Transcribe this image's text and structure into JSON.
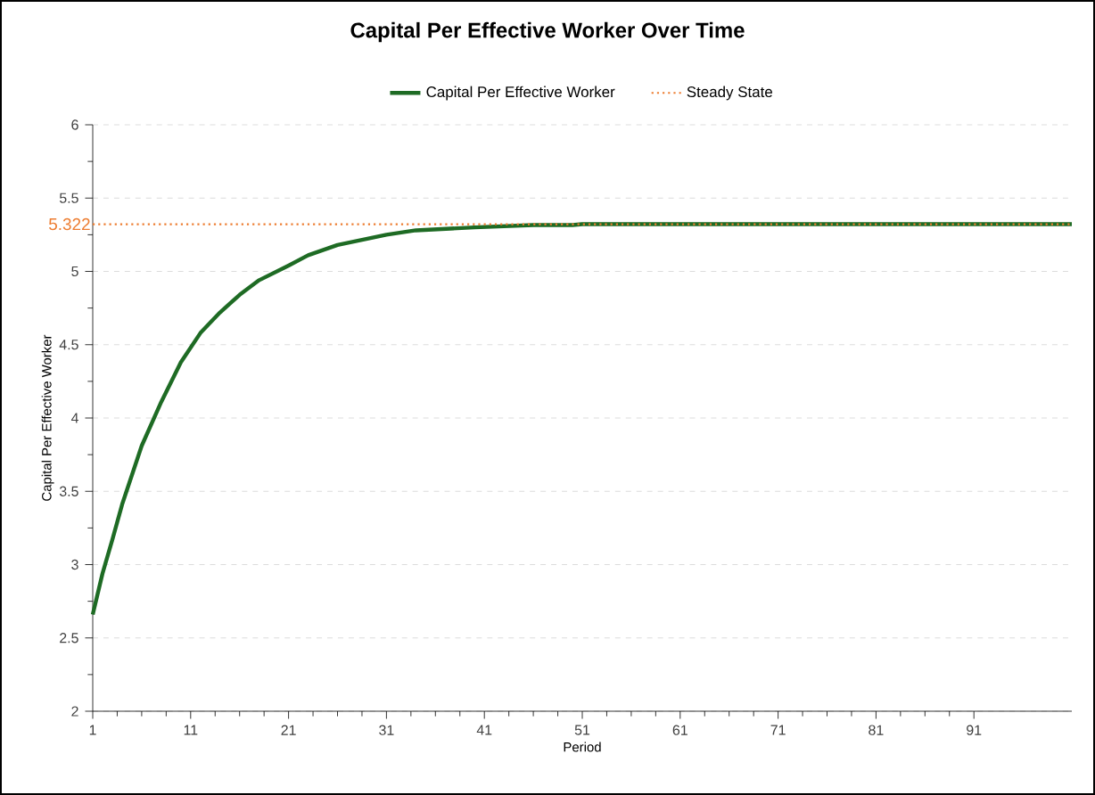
{
  "chart_data": {
    "type": "line",
    "title": "Capital Per Effective Worker Over Time",
    "xlabel": "Period",
    "ylabel": "Capital Per Effective Worker",
    "xlim": [
      1,
      101
    ],
    "xticks": [
      1,
      11,
      21,
      31,
      41,
      51,
      61,
      71,
      81,
      91
    ],
    "ylim": [
      2,
      6
    ],
    "yticks": [
      2,
      2.5,
      3,
      3.5,
      4,
      4.5,
      5,
      5.5,
      6
    ],
    "grid": "y",
    "legend": "top",
    "marker": "none",
    "series": [
      {
        "name": "Capital Per Effective Worker",
        "color": "#1e6b24",
        "line_style": "solid",
        "x": [
          1,
          2,
          3,
          4,
          6,
          8,
          10,
          12,
          14,
          16,
          18,
          21,
          23,
          26,
          31,
          34,
          40,
          46,
          50,
          51,
          101
        ],
        "values": [
          2.66,
          2.94,
          3.17,
          3.41,
          3.81,
          4.11,
          4.38,
          4.58,
          4.72,
          4.84,
          4.94,
          5.04,
          5.11,
          5.18,
          5.25,
          5.28,
          5.3,
          5.316,
          5.316,
          5.322,
          5.322
        ]
      },
      {
        "name": "Steady State",
        "color": "#ed7d31",
        "line_style": "dotted",
        "x": [
          1,
          101
        ],
        "values": [
          5.322,
          5.322
        ]
      }
    ],
    "annotations": [
      {
        "text": "5.322",
        "x": 1,
        "y": 5.322
      }
    ]
  }
}
